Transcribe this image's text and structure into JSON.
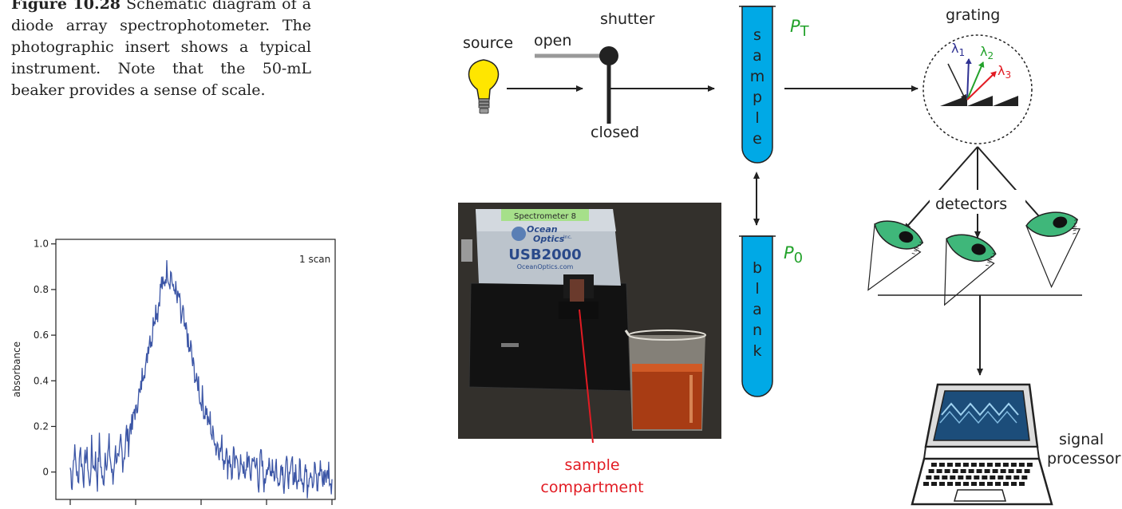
{
  "caption": {
    "figure_label": "Figure 10.28",
    "text": " Schematic diagram of a diode array spectrophotometer. The photographic insert shows a typical instrument. Note that the 50-mL beaker provides a sense of scale."
  },
  "schematic": {
    "source_label": "source",
    "shutter_label": "shutter",
    "shutter_open_label": "open",
    "shutter_closed_label": "closed",
    "sample_letters": [
      "s",
      "a",
      "m",
      "p",
      "l",
      "e"
    ],
    "blank_letters": [
      "b",
      "l",
      "a",
      "n",
      "k"
    ],
    "pt_symbol": "P",
    "pt_sub": "T",
    "p0_symbol": "P",
    "p0_sub": "0",
    "grating_label": "grating",
    "lambda1": "λ",
    "lambda1_sub": "1",
    "lambda2": "λ",
    "lambda2_sub": "2",
    "lambda3": "λ",
    "lambda3_sub": "3",
    "detectors_label": "detectors",
    "signal_label_1": "signal",
    "signal_label_2": "processor",
    "compartment_label_1": "sample",
    "compartment_label_2": "compartment",
    "colors": {
      "tube": "#00a9e6",
      "bulb": "#ffe600",
      "green_text": "#22a22a",
      "red_text": "#e21b23",
      "lambda1": "#2e3192",
      "lambda2": "#22a22a",
      "lambda3": "#e21b23",
      "eye": "#3fb77a"
    }
  },
  "photo": {
    "device_label": "Spectrometer 8",
    "brand_1": "Ocean",
    "brand_2": "Optics",
    "brand_suffix": "Inc.",
    "model": "USB2000",
    "website": "OceanOptics.com"
  },
  "chart_data": {
    "type": "line",
    "annotation": "1 scan",
    "ylabel": "absorbance",
    "xlabel": "",
    "yticks": [
      "0",
      "0.2",
      "0.4",
      "0.6",
      "0.8",
      "1.0"
    ],
    "ylim": [
      -0.12,
      1.02
    ],
    "xlim": [
      0,
      1
    ],
    "n_xticks": 5,
    "grid": false,
    "series_color": "#3c56a6",
    "series": [
      {
        "peak_center": 0.36,
        "peak_width": 0.085,
        "peak_height": 0.75,
        "noise": 0.075,
        "values": [
          0.02,
          -0.05,
          0.1,
          0.04,
          -0.06,
          0.12,
          0.03,
          -0.02,
          0.08,
          0.05,
          -0.08,
          0.11,
          0.02,
          0.06,
          -0.04,
          0.13,
          0.01,
          -0.07,
          0.09,
          0.04,
          0.12,
          0.03,
          -0.05,
          0.1,
          0.07,
          0.02,
          0.14,
          0.05,
          0.09,
          0.18,
          0.12,
          0.22,
          0.19,
          0.28,
          0.25,
          0.35,
          0.33,
          0.42,
          0.47,
          0.45,
          0.55,
          0.6,
          0.58,
          0.68,
          0.72,
          0.7,
          0.78,
          0.83,
          0.8,
          0.86,
          0.9,
          0.84,
          0.88,
          0.78,
          0.82,
          0.74,
          0.77,
          0.66,
          0.7,
          0.6,
          0.63,
          0.52,
          0.55,
          0.47,
          0.44,
          0.38,
          0.4,
          0.3,
          0.33,
          0.26,
          0.28,
          0.2,
          0.23,
          0.15,
          0.18,
          0.1,
          0.14,
          0.08,
          0.12,
          0.04,
          0.11,
          0.02,
          0.09,
          -0.03,
          0.07,
          0.01,
          0.1,
          -0.04,
          0.06,
          0.03,
          -0.06,
          0.08,
          0.02,
          -0.02,
          0.09,
          0.0,
          0.05,
          -0.05,
          0.07,
          0.01,
          -0.07,
          0.04,
          0.03,
          -0.03,
          0.06,
          -0.02,
          0.05,
          -0.08,
          0.02,
          0.04,
          -0.05,
          0.03,
          0.0,
          -0.06,
          0.05,
          -0.03,
          0.02,
          -0.09,
          0.04,
          0.0,
          -0.04,
          0.03,
          -0.07,
          0.01,
          0.02,
          -0.05,
          0.04,
          -0.1,
          0.0,
          0.03,
          -0.06,
          0.01,
          -0.03,
          0.02,
          -0.08,
          0.01
        ]
      }
    ]
  }
}
